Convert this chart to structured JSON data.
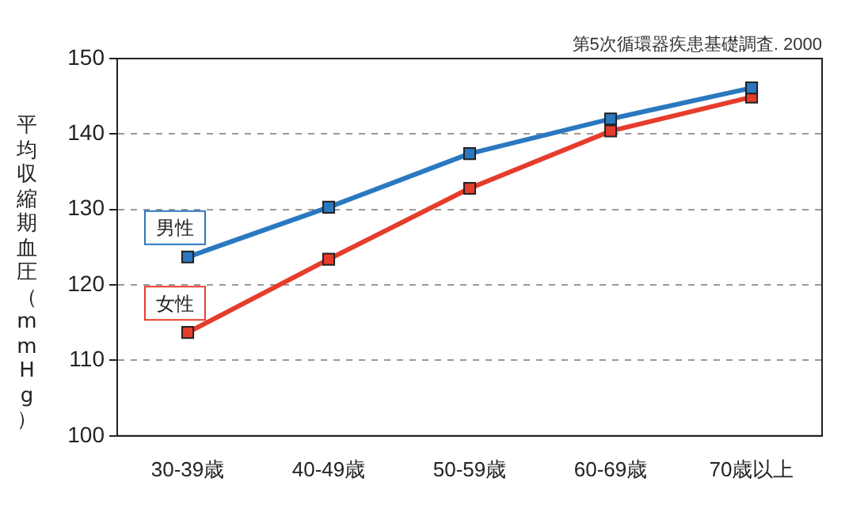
{
  "chart_data": {
    "type": "line",
    "ylabel": "平均収縮期血圧（mmHg）",
    "annotations": [
      "第5次循環器疾患基礎調査. 2000"
    ],
    "categories": [
      "30-39歳",
      "40-49歳",
      "50-59歳",
      "60-69歳",
      "70歳以上"
    ],
    "series": [
      {
        "name": "男性",
        "color": "#2a78c0",
        "values": [
          123.7,
          130.3,
          137.4,
          142.0,
          146.1
        ]
      },
      {
        "name": "女性",
        "color": "#e63c2c",
        "values": [
          113.7,
          123.4,
          132.8,
          140.4,
          144.9
        ]
      }
    ],
    "ylim": [
      100,
      150
    ],
    "yticks": [
      100,
      110,
      120,
      130,
      140,
      150
    ],
    "grid": "y",
    "legend": false,
    "marker": "square",
    "line_style": "solid"
  }
}
